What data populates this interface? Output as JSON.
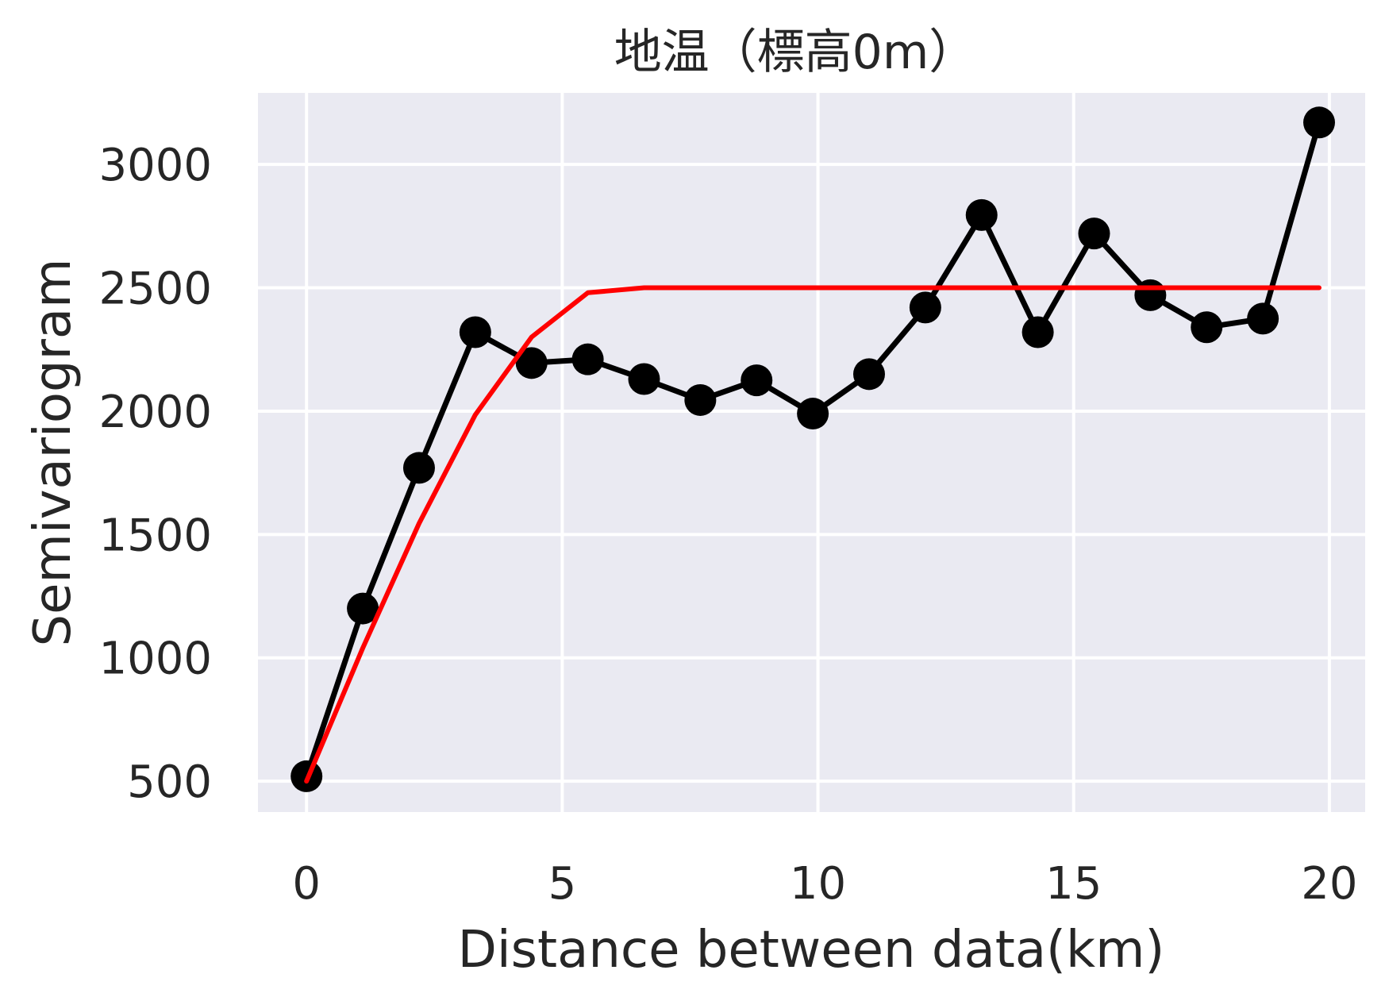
{
  "chart_data": {
    "type": "line",
    "title": "地温（標高0m）",
    "xlabel": "Distance between data(km)",
    "ylabel": "Semivariogram",
    "xlim": [
      -0.95,
      20.7
    ],
    "ylim": [
      375,
      3290
    ],
    "xticks": [
      0,
      5,
      10,
      15,
      20
    ],
    "yticks": [
      500,
      1000,
      1500,
      2000,
      2500,
      3000
    ],
    "grid": true,
    "background": "#eaeaf2",
    "grid_color": "#ffffff",
    "series": [
      {
        "color": "#000000",
        "marker": "circle",
        "x": [
          0,
          1.1,
          2.2,
          3.3,
          4.4,
          5.5,
          6.6,
          7.7,
          8.8,
          9.9,
          11.0,
          12.1,
          13.2,
          14.3,
          15.4,
          16.5,
          17.6,
          18.7,
          19.8
        ],
        "y": [
          520,
          1200,
          1770,
          2320,
          2195,
          2210,
          2130,
          2045,
          2125,
          1990,
          2150,
          2420,
          2795,
          2320,
          2720,
          2470,
          2340,
          2375,
          3170
        ]
      },
      {
        "color": "#ff0000",
        "marker": "none",
        "x": [
          0,
          1.1,
          2.2,
          3.3,
          4.4,
          5.5,
          6.6,
          7.7,
          8.8,
          9.9,
          11.0,
          12.1,
          13.2,
          14.3,
          15.4,
          16.5,
          17.6,
          18.7,
          19.8
        ],
        "y": [
          500,
          1040,
          1545,
          1985,
          2300,
          2480,
          2500,
          2500,
          2500,
          2500,
          2500,
          2500,
          2500,
          2500,
          2500,
          2500,
          2500,
          2500,
          2500
        ]
      }
    ]
  }
}
